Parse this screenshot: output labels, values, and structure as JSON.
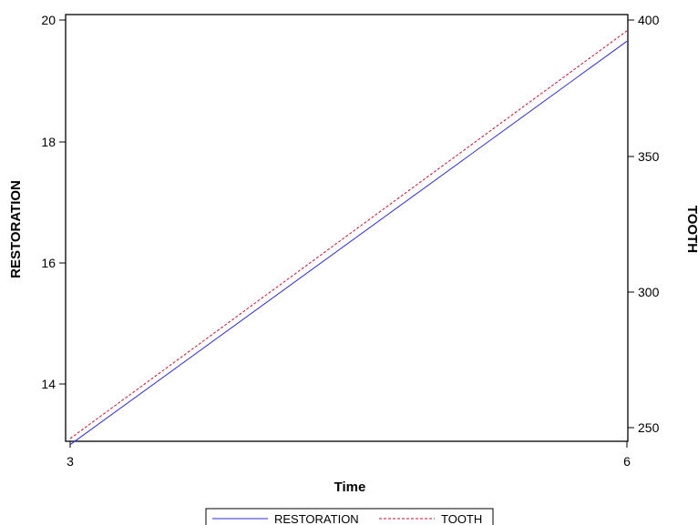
{
  "chart_data": {
    "type": "line",
    "xlabel": "Time",
    "x": [
      3,
      6
    ],
    "xlim": [
      3,
      6
    ],
    "xticks": [
      "3",
      "6"
    ],
    "ylabel_left": "RESTORATION",
    "ylim_left": [
      13,
      20.1
    ],
    "yticks_left": [
      "14",
      "16",
      "18",
      "20"
    ],
    "ylabel_right": "TOOTH",
    "ylim_right": [
      245,
      403
    ],
    "yticks_right": [
      "250",
      "300",
      "350",
      "400"
    ],
    "legend_position": "bottom",
    "grid": false,
    "series": [
      {
        "name": "RESTORATION",
        "axis": "left",
        "values": [
          13.0,
          19.65
        ],
        "color": "#2b2bd6",
        "style": "solid"
      },
      {
        "name": "TOOTH",
        "axis": "right",
        "values": [
          246,
          396
        ],
        "color": "#c8102e",
        "style": "dashed"
      }
    ]
  }
}
